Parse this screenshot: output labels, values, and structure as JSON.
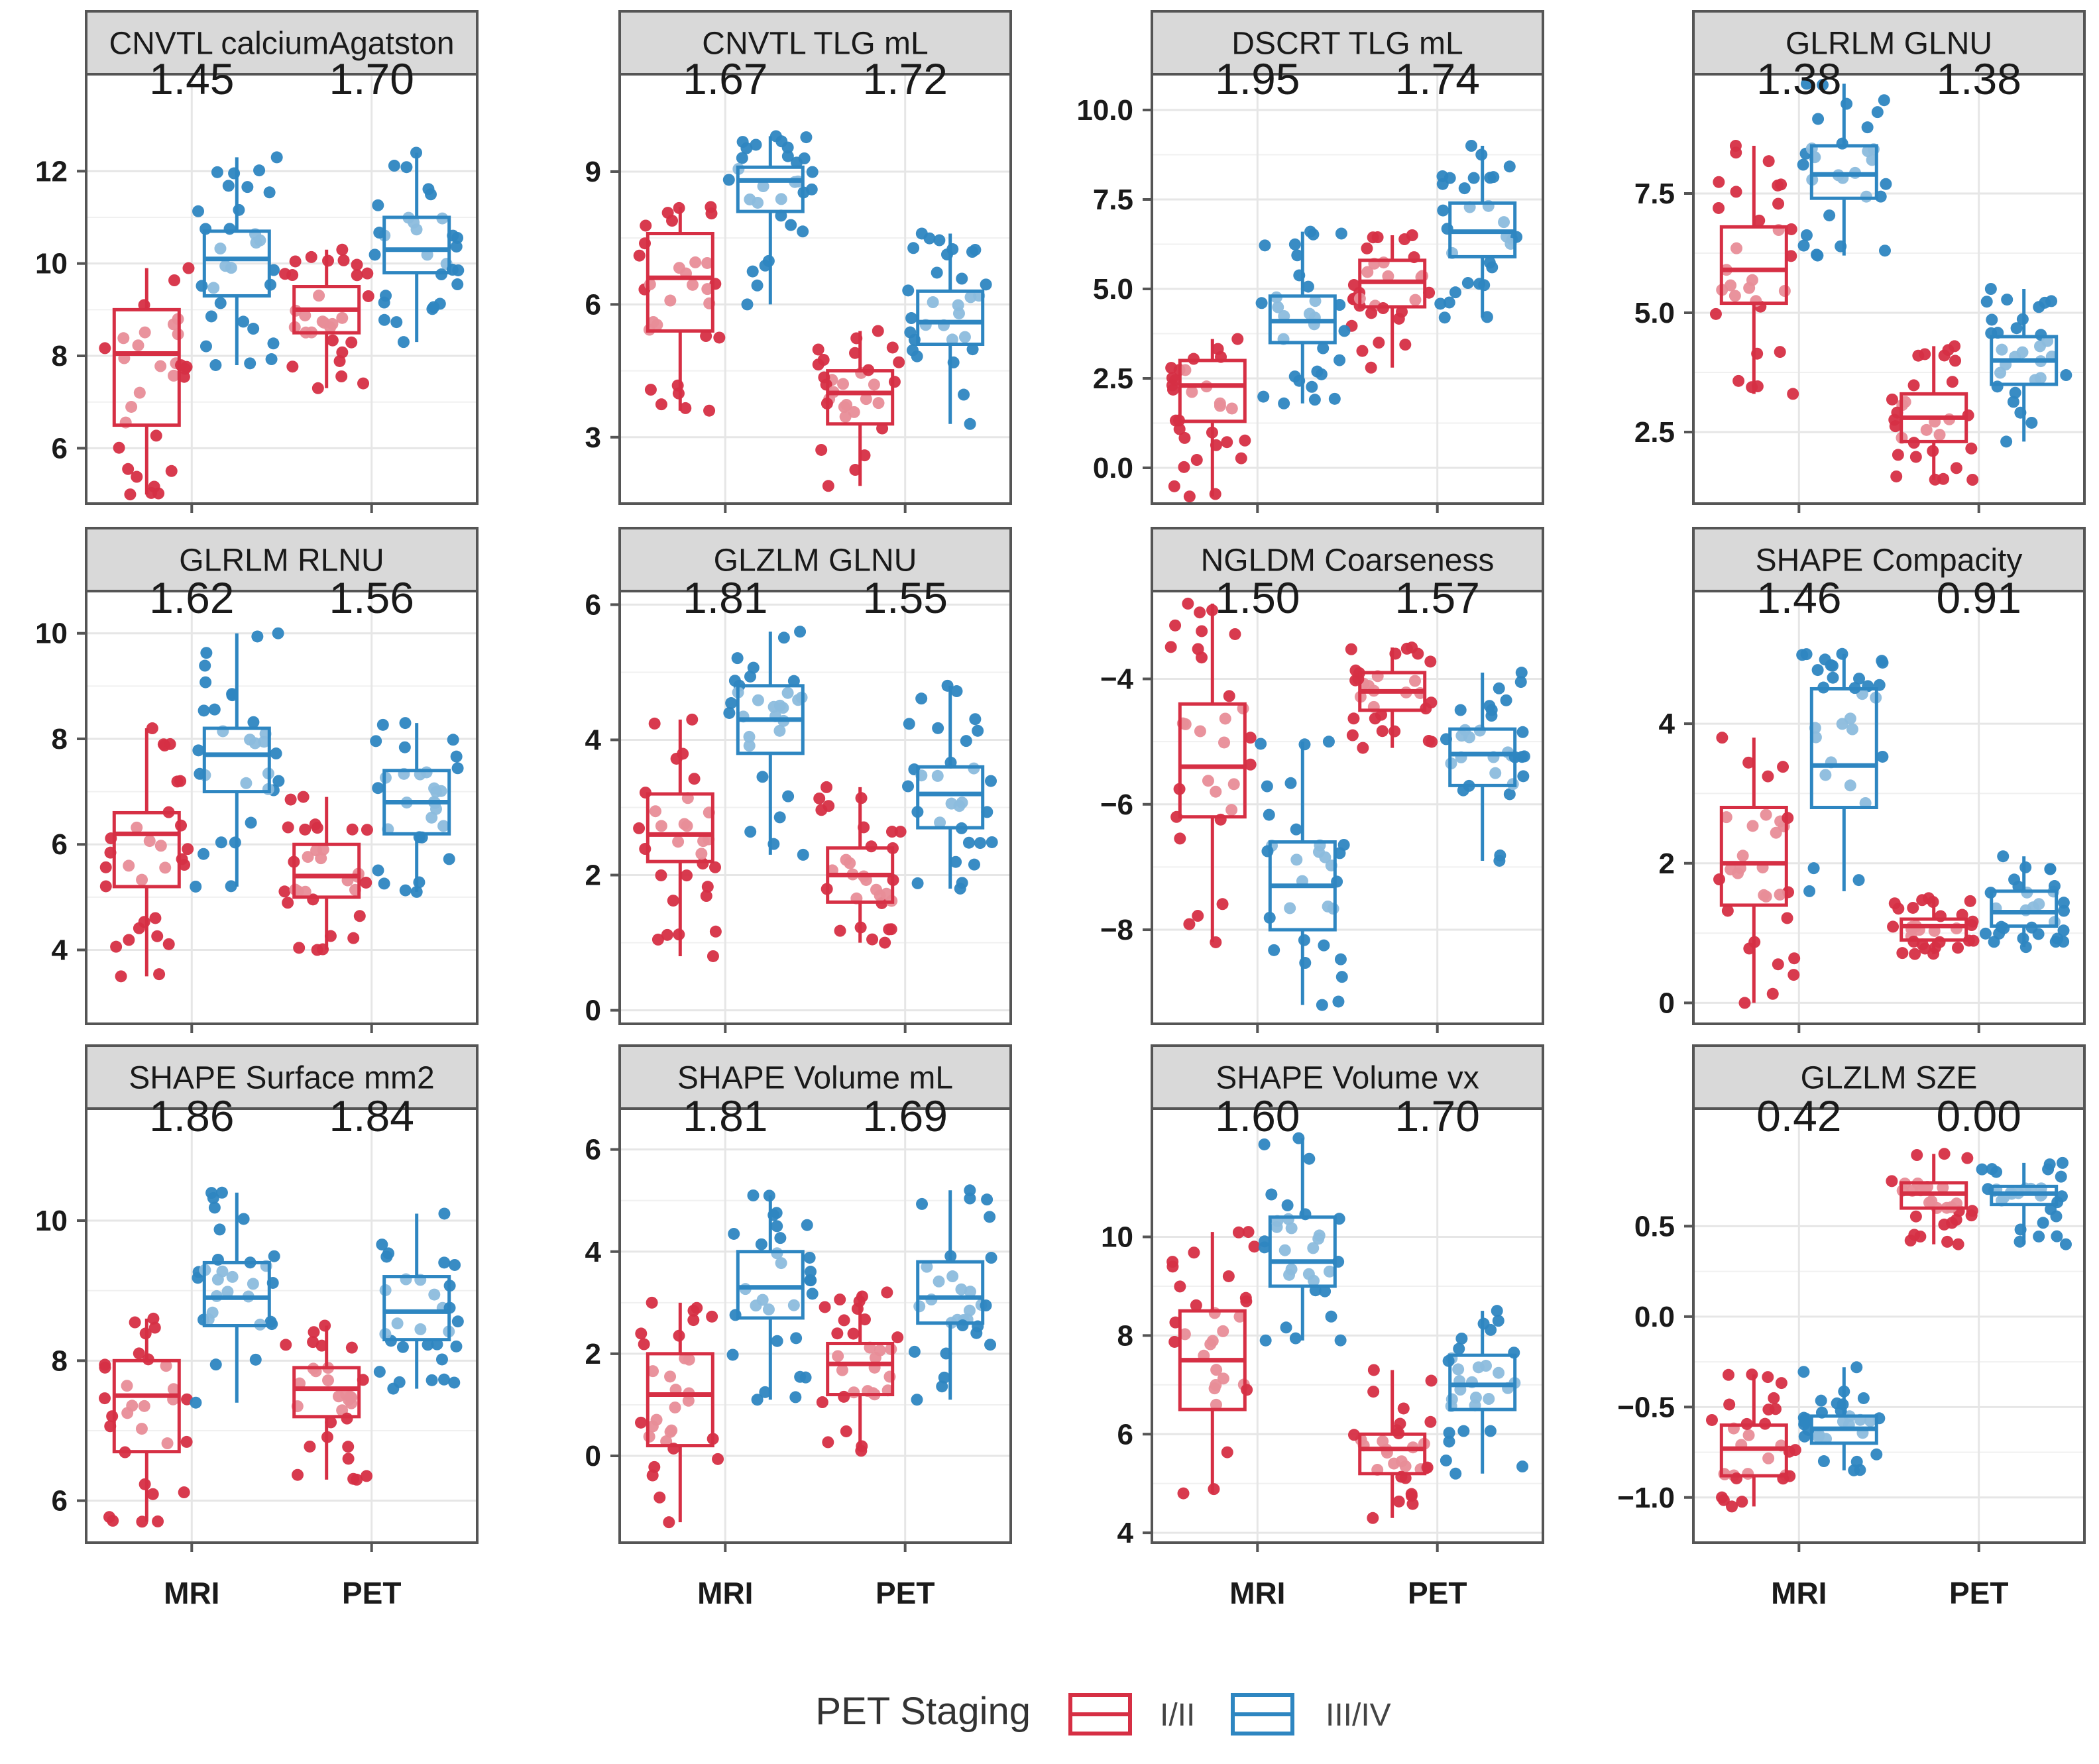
{
  "figure": {
    "x_categories": [
      "MRI",
      "PET"
    ],
    "groups": [
      "I/II",
      "III/IV"
    ],
    "group_colors": {
      "I/II": "#d62f44",
      "III/IV": "#2e86c1"
    },
    "panel_header_color": "#d9d9d9"
  },
  "legend": {
    "title": "PET Staging",
    "items": [
      {
        "label": "I/II",
        "color": "#d62f44"
      },
      {
        "label": "III/IV",
        "color": "#2e86c1"
      }
    ]
  },
  "chart_data": [
    {
      "type": "box",
      "title": "CNVTL calciumAgatston",
      "annotations": [
        "1.45",
        "1.70"
      ],
      "ylim": [
        4.8,
        14.1
      ],
      "yticks": [
        6,
        8,
        10,
        12
      ],
      "categories": [
        "MRI",
        "PET"
      ],
      "series": [
        {
          "name": "I/II",
          "boxes": [
            {
              "min": 5.0,
              "q1": 6.5,
              "median": 8.05,
              "q3": 9.0,
              "max": 9.9
            },
            {
              "min": 7.3,
              "q1": 8.5,
              "median": 9.0,
              "q3": 9.5,
              "max": 10.3
            }
          ]
        },
        {
          "name": "III/IV",
          "boxes": [
            {
              "min": 7.8,
              "q1": 9.3,
              "median": 10.1,
              "q3": 10.7,
              "max": 12.3
            },
            {
              "min": 8.3,
              "q1": 9.8,
              "median": 10.3,
              "q3": 11.0,
              "max": 12.4
            }
          ]
        }
      ]
    },
    {
      "type": "box",
      "title": "CNVTL TLG mL",
      "annotations": [
        "1.67",
        "1.72"
      ],
      "ylim": [
        1.5,
        11.2
      ],
      "yticks": [
        3,
        6,
        9
      ],
      "categories": [
        "MRI",
        "PET"
      ],
      "series": [
        {
          "name": "I/II",
          "boxes": [
            {
              "min": 3.6,
              "q1": 5.4,
              "median": 6.6,
              "q3": 7.6,
              "max": 8.2
            },
            {
              "min": 1.9,
              "q1": 3.3,
              "median": 4.0,
              "q3": 4.5,
              "max": 5.4
            }
          ]
        },
        {
          "name": "III/IV",
          "boxes": [
            {
              "min": 6.0,
              "q1": 8.1,
              "median": 8.8,
              "q3": 9.1,
              "max": 9.8
            },
            {
              "min": 3.3,
              "q1": 5.1,
              "median": 5.6,
              "q3": 6.3,
              "max": 7.6
            }
          ]
        }
      ]
    },
    {
      "type": "box",
      "title": "DSCRT TLG mL",
      "annotations": [
        "1.95",
        "1.74"
      ],
      "ylim": [
        -1.0,
        11.0
      ],
      "yticks": [
        0.0,
        2.5,
        5.0,
        7.5,
        10.0
      ],
      "categories": [
        "MRI",
        "PET"
      ],
      "series": [
        {
          "name": "I/II",
          "boxes": [
            {
              "min": -0.8,
              "q1": 1.3,
              "median": 2.3,
              "q3": 3.0,
              "max": 3.6
            },
            {
              "min": 2.8,
              "q1": 4.5,
              "median": 5.2,
              "q3": 5.8,
              "max": 6.5
            }
          ]
        },
        {
          "name": "III/IV",
          "boxes": [
            {
              "min": 1.8,
              "q1": 3.5,
              "median": 4.1,
              "q3": 4.8,
              "max": 6.6
            },
            {
              "min": 4.2,
              "q1": 5.9,
              "median": 6.6,
              "q3": 7.4,
              "max": 9.0
            }
          ]
        }
      ]
    },
    {
      "type": "box",
      "title": "GLRLM GLNU",
      "annotations": [
        "1.38",
        "1.38"
      ],
      "ylim": [
        1.0,
        10.0
      ],
      "yticks": [
        2.5,
        5.0,
        7.5
      ],
      "categories": [
        "MRI",
        "PET"
      ],
      "series": [
        {
          "name": "I/II",
          "boxes": [
            {
              "min": 3.3,
              "q1": 5.2,
              "median": 5.9,
              "q3": 6.8,
              "max": 8.5
            },
            {
              "min": 1.5,
              "q1": 2.3,
              "median": 2.8,
              "q3": 3.3,
              "max": 4.3
            }
          ]
        },
        {
          "name": "III/IV",
          "boxes": [
            {
              "min": 6.2,
              "q1": 7.4,
              "median": 7.9,
              "q3": 8.5,
              "max": 9.8
            },
            {
              "min": 2.3,
              "q1": 3.5,
              "median": 4.0,
              "q3": 4.5,
              "max": 5.5
            }
          ]
        }
      ]
    },
    {
      "type": "box",
      "title": "GLRLM RLNU",
      "annotations": [
        "1.62",
        "1.56"
      ],
      "ylim": [
        2.6,
        10.8
      ],
      "yticks": [
        4,
        6,
        8,
        10
      ],
      "categories": [
        "MRI",
        "PET"
      ],
      "series": [
        {
          "name": "I/II",
          "boxes": [
            {
              "min": 3.5,
              "q1": 5.2,
              "median": 6.2,
              "q3": 6.6,
              "max": 8.2
            },
            {
              "min": 4.0,
              "q1": 5.0,
              "median": 5.4,
              "q3": 6.0,
              "max": 6.9
            }
          ]
        },
        {
          "name": "III/IV",
          "boxes": [
            {
              "min": 5.2,
              "q1": 7.0,
              "median": 7.7,
              "q3": 8.2,
              "max": 10.0
            },
            {
              "min": 5.1,
              "q1": 6.2,
              "median": 6.8,
              "q3": 7.4,
              "max": 8.3
            }
          ]
        }
      ]
    },
    {
      "type": "box",
      "title": "GLZLM GLNU",
      "annotations": [
        "1.81",
        "1.55"
      ],
      "ylim": [
        -0.2,
        6.2
      ],
      "yticks": [
        0,
        2,
        4,
        6
      ],
      "categories": [
        "MRI",
        "PET"
      ],
      "series": [
        {
          "name": "I/II",
          "boxes": [
            {
              "min": 0.8,
              "q1": 2.2,
              "median": 2.6,
              "q3": 3.2,
              "max": 4.3
            },
            {
              "min": 1.0,
              "q1": 1.6,
              "median": 2.0,
              "q3": 2.4,
              "max": 3.3
            }
          ]
        },
        {
          "name": "III/IV",
          "boxes": [
            {
              "min": 2.3,
              "q1": 3.8,
              "median": 4.3,
              "q3": 4.8,
              "max": 5.6
            },
            {
              "min": 1.8,
              "q1": 2.7,
              "median": 3.2,
              "q3": 3.6,
              "max": 4.8
            }
          ]
        }
      ]
    },
    {
      "type": "box",
      "title": "NGLDM Coarseness",
      "annotations": [
        "1.50",
        "1.57"
      ],
      "ylim": [
        -9.5,
        -2.6
      ],
      "yticks": [
        -8,
        -6,
        -4
      ],
      "categories": [
        "MRI",
        "PET"
      ],
      "series": [
        {
          "name": "I/II",
          "boxes": [
            {
              "min": -8.2,
              "q1": -6.2,
              "median": -5.4,
              "q3": -4.4,
              "max": -2.8
            },
            {
              "min": -5.1,
              "q1": -4.5,
              "median": -4.2,
              "q3": -3.9,
              "max": -3.5
            }
          ]
        },
        {
          "name": "III/IV",
          "boxes": [
            {
              "min": -9.2,
              "q1": -8.0,
              "median": -7.3,
              "q3": -6.6,
              "max": -5.0
            },
            {
              "min": -6.9,
              "q1": -5.7,
              "median": -5.2,
              "q3": -4.8,
              "max": -3.9
            }
          ]
        }
      ]
    },
    {
      "type": "box",
      "title": "SHAPE Compacity",
      "annotations": [
        "1.46",
        "0.91"
      ],
      "ylim": [
        -0.3,
        5.9
      ],
      "yticks": [
        0,
        2,
        4
      ],
      "categories": [
        "MRI",
        "PET"
      ],
      "series": [
        {
          "name": "I/II",
          "boxes": [
            {
              "min": 0.0,
              "q1": 1.4,
              "median": 2.0,
              "q3": 2.8,
              "max": 3.8
            },
            {
              "min": 0.7,
              "q1": 0.9,
              "median": 1.1,
              "q3": 1.2,
              "max": 1.5
            }
          ]
        },
        {
          "name": "III/IV",
          "boxes": [
            {
              "min": 1.6,
              "q1": 2.8,
              "median": 3.4,
              "q3": 4.5,
              "max": 5.0
            },
            {
              "min": 0.8,
              "q1": 1.1,
              "median": 1.3,
              "q3": 1.6,
              "max": 2.1
            }
          ]
        }
      ]
    },
    {
      "type": "box",
      "title": "SHAPE Surface mm2",
      "annotations": [
        "1.86",
        "1.84"
      ],
      "ylim": [
        5.4,
        11.6
      ],
      "yticks": [
        6,
        8,
        10
      ],
      "categories": [
        "MRI",
        "PET"
      ],
      "series": [
        {
          "name": "I/II",
          "boxes": [
            {
              "min": 5.7,
              "q1": 6.7,
              "median": 7.5,
              "q3": 8.0,
              "max": 8.6
            },
            {
              "min": 6.3,
              "q1": 7.2,
              "median": 7.6,
              "q3": 7.9,
              "max": 8.5
            }
          ]
        },
        {
          "name": "III/IV",
          "boxes": [
            {
              "min": 7.4,
              "q1": 8.5,
              "median": 8.9,
              "q3": 9.4,
              "max": 10.4
            },
            {
              "min": 7.6,
              "q1": 8.3,
              "median": 8.7,
              "q3": 9.2,
              "max": 10.1
            }
          ]
        }
      ]
    },
    {
      "type": "box",
      "title": "SHAPE Volume mL",
      "annotations": [
        "1.81",
        "1.69"
      ],
      "ylim": [
        -1.7,
        6.8
      ],
      "yticks": [
        0,
        2,
        4,
        6
      ],
      "categories": [
        "MRI",
        "PET"
      ],
      "series": [
        {
          "name": "I/II",
          "boxes": [
            {
              "min": -1.3,
              "q1": 0.2,
              "median": 1.2,
              "q3": 2.0,
              "max": 3.0
            },
            {
              "min": 0.1,
              "q1": 1.2,
              "median": 1.8,
              "q3": 2.2,
              "max": 3.2
            }
          ]
        },
        {
          "name": "III/IV",
          "boxes": [
            {
              "min": 1.1,
              "q1": 2.7,
              "median": 3.3,
              "q3": 4.0,
              "max": 5.1
            },
            {
              "min": 1.1,
              "q1": 2.6,
              "median": 3.1,
              "q3": 3.8,
              "max": 5.2
            }
          ]
        }
      ]
    },
    {
      "type": "box",
      "title": "SHAPE Volume vx",
      "annotations": [
        "1.60",
        "1.70"
      ],
      "ylim": [
        3.8,
        12.6
      ],
      "yticks": [
        4,
        6,
        8,
        10
      ],
      "categories": [
        "MRI",
        "PET"
      ],
      "series": [
        {
          "name": "I/II",
          "boxes": [
            {
              "min": 4.8,
              "q1": 6.5,
              "median": 7.5,
              "q3": 8.5,
              "max": 10.1
            },
            {
              "min": 4.3,
              "q1": 5.2,
              "median": 5.7,
              "q3": 6.0,
              "max": 7.3
            }
          ]
        },
        {
          "name": "III/IV",
          "boxes": [
            {
              "min": 7.9,
              "q1": 9.0,
              "median": 9.5,
              "q3": 10.4,
              "max": 12.0
            },
            {
              "min": 5.2,
              "q1": 6.5,
              "median": 7.0,
              "q3": 7.6,
              "max": 8.5
            }
          ]
        }
      ]
    },
    {
      "type": "box",
      "title": "GLZLM SZE",
      "annotations": [
        "0.42",
        "0.00"
      ],
      "ylim": [
        -1.25,
        1.15
      ],
      "yticks": [
        -1.0,
        -0.5,
        0.0,
        0.5
      ],
      "categories": [
        "MRI",
        "PET"
      ],
      "series": [
        {
          "name": "I/II",
          "boxes": [
            {
              "min": -1.05,
              "q1": -0.88,
              "median": -0.73,
              "q3": -0.6,
              "max": -0.32
            },
            {
              "min": 0.4,
              "q1": 0.6,
              "median": 0.68,
              "q3": 0.74,
              "max": 0.9
            }
          ]
        },
        {
          "name": "III/IV",
          "boxes": [
            {
              "min": -0.85,
              "q1": -0.7,
              "median": -0.62,
              "q3": -0.55,
              "max": -0.28
            },
            {
              "min": 0.4,
              "q1": 0.62,
              "median": 0.68,
              "q3": 0.72,
              "max": 0.85
            }
          ]
        }
      ]
    }
  ]
}
